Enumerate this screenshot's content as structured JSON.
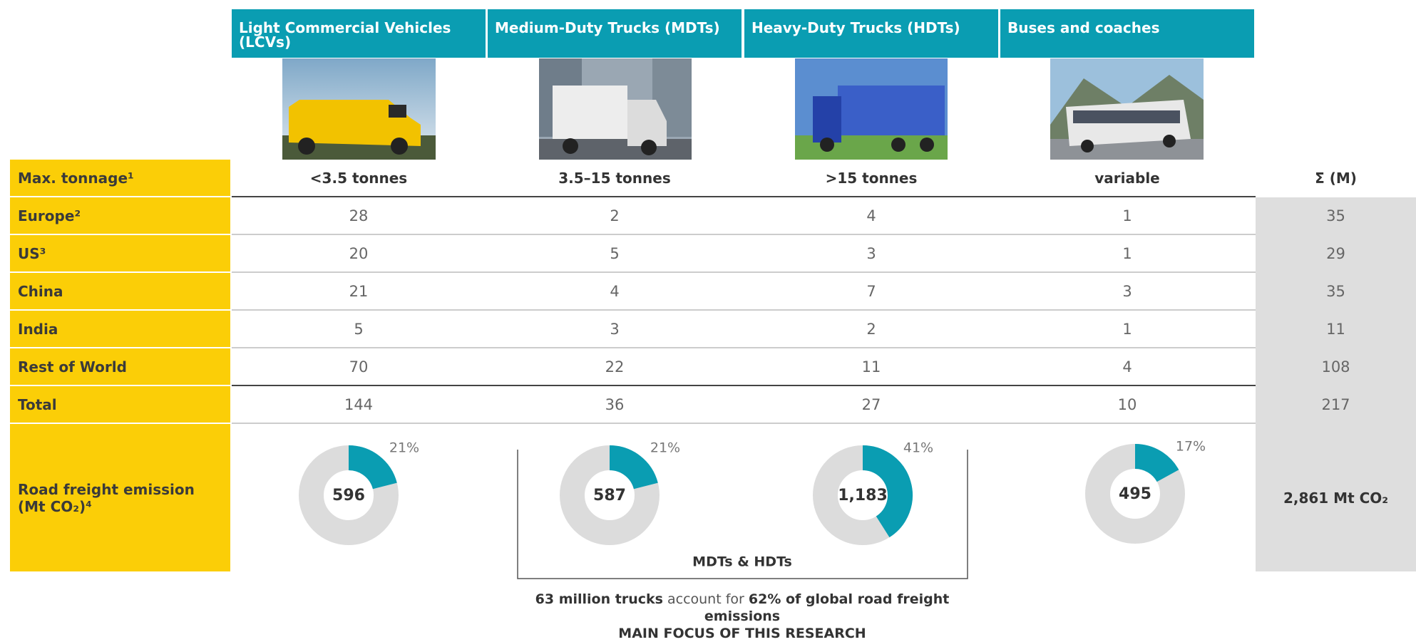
{
  "columns": [
    "Light Commercial Vehicles (LCVs)",
    "Medium-Duty Trucks (MDTs)",
    "Heavy-Duty Trucks (HDTs)",
    "Buses and coaches"
  ],
  "table": {
    "tonnage": {
      "label": "Max. tonnage¹",
      "values": [
        "<3.5 tonnes",
        "3.5–15 tonnes",
        ">15 tonnes",
        "variable"
      ],
      "total_header": "Σ (M)"
    },
    "rows": [
      {
        "label": "Europe²",
        "values": [
          28,
          2,
          4,
          1
        ],
        "total": 35
      },
      {
        "label": "US³",
        "values": [
          20,
          5,
          3,
          1
        ],
        "total": 29
      },
      {
        "label": "China",
        "values": [
          21,
          4,
          7,
          3
        ],
        "total": 35
      },
      {
        "label": "India",
        "values": [
          5,
          3,
          2,
          1
        ],
        "total": 11
      },
      {
        "label": "Rest of World",
        "values": [
          70,
          22,
          11,
          4
        ],
        "total": 108
      },
      {
        "label": "Total",
        "values": [
          144,
          36,
          27,
          10
        ],
        "total": 217
      }
    ],
    "emissions": {
      "label": "Road freight emission (Mt CO₂)⁴",
      "values": [
        "596",
        "587",
        "1,183",
        "495"
      ],
      "shares": [
        21,
        21,
        41,
        17
      ],
      "share_labels": [
        "21%",
        "21%",
        "41%",
        "17%"
      ],
      "total": "2,861 Mt CO₂"
    }
  },
  "bracket_label": "MDTs & HDTs",
  "footer": {
    "line": [
      {
        "text": "63 million trucks",
        "bold": true
      },
      {
        "text": "account for",
        "bold": false
      },
      {
        "text": "62% of global road freight emissions",
        "bold": true
      }
    ],
    "focus": "MAIN FOCUS OF THIS RESEARCH"
  }
}
